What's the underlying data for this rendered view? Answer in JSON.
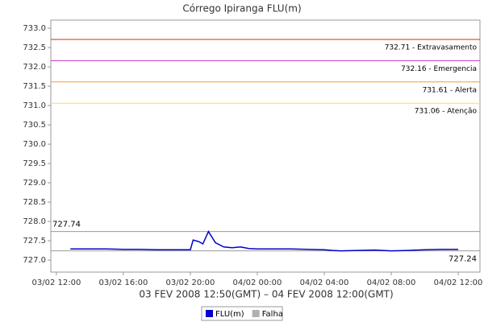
{
  "chart_data": {
    "type": "line",
    "title": "Córrego Ipiranga FLU(m)",
    "xlabel": "03 FEV 2008 12:50(GMT) – 04 FEV 2008 12:00(GMT)",
    "x": [
      "2008-02-03T12:50",
      "2008-02-03T14:00",
      "2008-02-03T15:00",
      "2008-02-03T16:00",
      "2008-02-03T17:00",
      "2008-02-03T18:00",
      "2008-02-03T19:00",
      "2008-02-03T20:00",
      "2008-02-03T20:10",
      "2008-02-03T20:30",
      "2008-02-03T20:45",
      "2008-02-03T21:05",
      "2008-02-03T21:30",
      "2008-02-03T22:00",
      "2008-02-03T22:30",
      "2008-02-03T23:00",
      "2008-02-03T23:30",
      "2008-02-04T00:00",
      "2008-02-04T01:00",
      "2008-02-04T02:00",
      "2008-02-04T03:00",
      "2008-02-04T04:00",
      "2008-02-04T04:30",
      "2008-02-04T05:00",
      "2008-02-04T06:00",
      "2008-02-04T07:00",
      "2008-02-04T08:00",
      "2008-02-04T09:00",
      "2008-02-04T10:00",
      "2008-02-04T11:00",
      "2008-02-04T12:00"
    ],
    "series": [
      {
        "name": "FLU(m)",
        "color": "#0000cc",
        "values": [
          727.29,
          727.29,
          727.29,
          727.28,
          727.28,
          727.27,
          727.27,
          727.27,
          727.52,
          727.48,
          727.42,
          727.74,
          727.45,
          727.34,
          727.32,
          727.34,
          727.3,
          727.29,
          727.29,
          727.29,
          727.28,
          727.27,
          727.25,
          727.24,
          727.25,
          727.26,
          727.24,
          727.25,
          727.27,
          727.28,
          727.28
        ]
      },
      {
        "name": "Falha",
        "color": "#b0b0b0",
        "values": [
          null,
          null,
          null,
          null,
          null,
          null,
          null,
          null,
          null,
          null,
          null,
          null,
          null,
          null,
          null,
          null,
          null,
          null,
          null,
          null,
          null,
          null,
          null,
          null,
          null,
          null,
          null,
          null,
          null,
          null,
          null
        ]
      }
    ],
    "thresholds": [
      {
        "value": 732.71,
        "label": "732.71 - Extravasamento",
        "color": "#cc3300"
      },
      {
        "value": 732.16,
        "label": "732.16 - Emergencia",
        "color": "#cc33cc"
      },
      {
        "value": 731.61,
        "label": "731.61 - Alerta",
        "color": "#ff9933"
      },
      {
        "value": 731.06,
        "label": "731.06 - Atenção",
        "color": "#ffdd55"
      }
    ],
    "extremes": [
      {
        "value": 727.74,
        "label": "727.74",
        "color": "#999999"
      },
      {
        "value": 727.24,
        "label": "727.24",
        "color": "#999999"
      }
    ],
    "xlim": [
      "2008-02-03T11:40",
      "2008-02-04T13:18"
    ],
    "xticks": [
      {
        "value": "2008-02-03T12:00",
        "label": "03/02 12:00"
      },
      {
        "value": "2008-02-03T16:00",
        "label": "03/02 16:00"
      },
      {
        "value": "2008-02-03T20:00",
        "label": "03/02 20:00"
      },
      {
        "value": "2008-02-04T00:00",
        "label": "04/02 00:00"
      },
      {
        "value": "2008-02-04T04:00",
        "label": "04/02 04:00"
      },
      {
        "value": "2008-02-04T08:00",
        "label": "04/02 08:00"
      },
      {
        "value": "2008-02-04T12:00",
        "label": "04/02 12:00"
      }
    ],
    "ylim": [
      726.69,
      733.21
    ],
    "yticks": [
      {
        "value": 727,
        "label": "727.0"
      },
      727.5,
      {
        "value": 728,
        "label": "728.0"
      },
      728.5,
      {
        "value": 729,
        "label": "729.0"
      },
      729.5,
      {
        "value": 730,
        "label": "730.0"
      },
      730.5,
      {
        "value": 731,
        "label": "731.0"
      },
      731.5,
      {
        "value": 732,
        "label": "732.0"
      },
      732.5,
      {
        "value": 733,
        "label": "733.0"
      }
    ],
    "legend": "bottom"
  }
}
